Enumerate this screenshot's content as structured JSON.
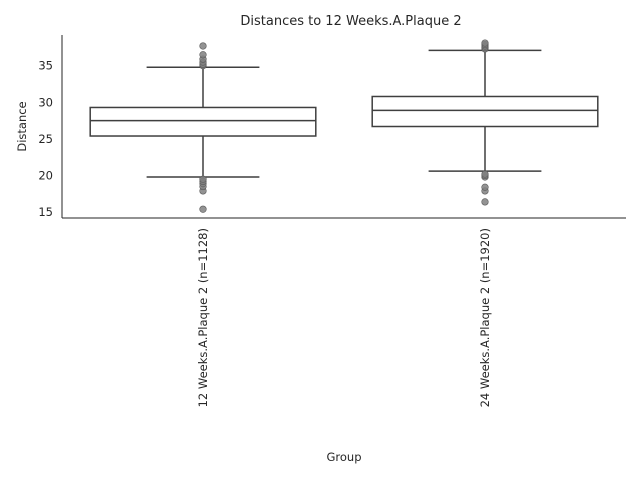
{
  "chart_data": {
    "type": "box",
    "title": "Distances to 12 Weeks.A.Plaque 2",
    "xlabel": "Group",
    "ylabel": "Distance",
    "ylim": [
      14.2,
      39.2
    ],
    "yticks": [
      15,
      20,
      25,
      30,
      35
    ],
    "grid": false,
    "categories": [
      "12 Weeks.A.Plaque 2 (n=1128)",
      "24 Weeks.A.Plaque 2 (n=1920)"
    ],
    "boxes": [
      {
        "category": "12 Weeks.A.Plaque 2 (n=1128)",
        "whisker_low": 19.8,
        "q1": 25.4,
        "median": 27.5,
        "q3": 29.3,
        "whisker_high": 34.8,
        "outliers": [
          15.4,
          17.9,
          18.5,
          18.9,
          19.2,
          19.5,
          35.0,
          35.2,
          35.5,
          35.9,
          36.5,
          37.7
        ]
      },
      {
        "category": "24 Weeks.A.Plaque 2 (n=1920)",
        "whisker_low": 20.6,
        "q1": 26.7,
        "median": 28.9,
        "q3": 30.8,
        "whisker_high": 37.1,
        "outliers": [
          16.4,
          17.9,
          18.4,
          19.8,
          20.0,
          20.2,
          37.3,
          37.5,
          37.7,
          37.9,
          38.1
        ]
      }
    ],
    "colors": {
      "box_edge": "#3f3f3f",
      "box_fill": "#ffffff",
      "outlier": "#808080",
      "axis": "#262626"
    }
  }
}
